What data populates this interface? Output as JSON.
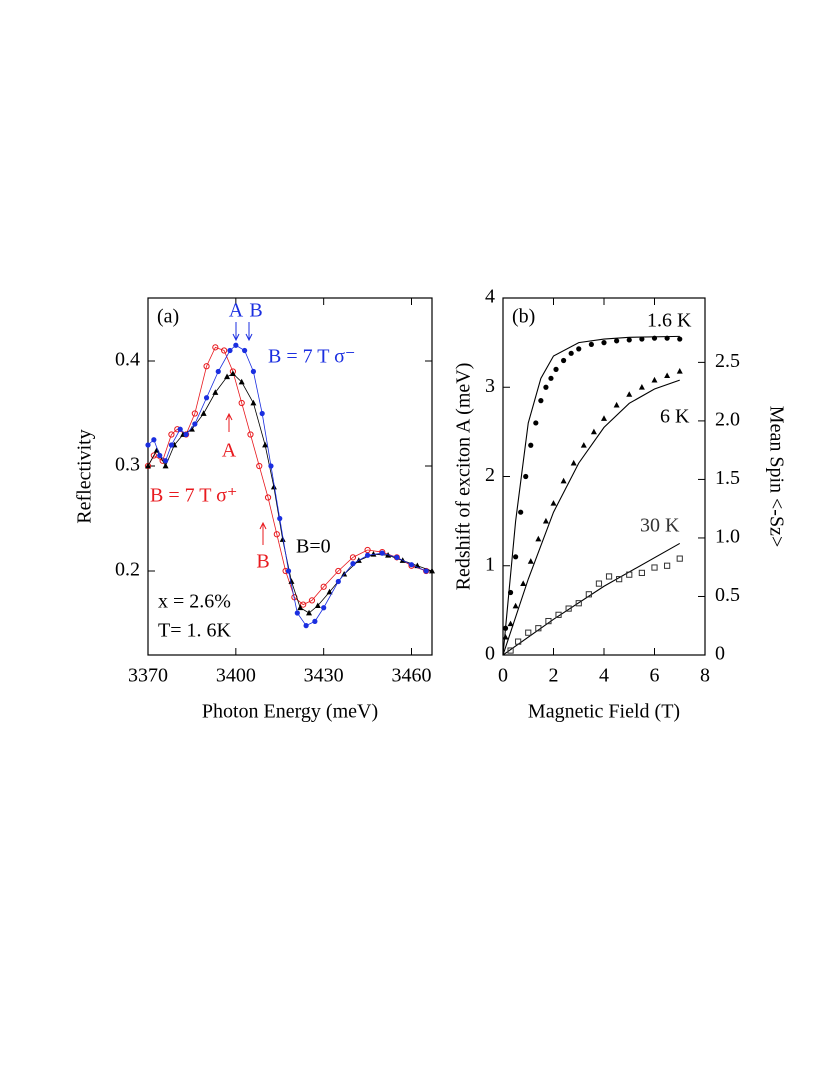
{
  "chart_data": [
    {
      "type": "line",
      "panel_label": "(a)",
      "xlabel": "Photon Energy (meV)",
      "ylabel": "Reflectivity",
      "xlim": [
        3370,
        3467
      ],
      "xticks": [
        3370,
        3400,
        3430,
        3460
      ],
      "ylim": [
        0.12,
        0.46
      ],
      "yticks": [
        0.2,
        0.3,
        0.4
      ],
      "series": [
        {
          "name": "B = 7 T σ⁺",
          "color": "#e8191e",
          "marker": "circle-open",
          "x": [
            3370,
            3372,
            3375,
            3378,
            3380,
            3383,
            3386,
            3390,
            3393,
            3396,
            3399,
            3402,
            3405,
            3408,
            3411,
            3414,
            3417,
            3420,
            3423,
            3426,
            3430,
            3435,
            3440,
            3445,
            3450,
            3455,
            3460,
            3465
          ],
          "values": [
            0.3,
            0.31,
            0.305,
            0.33,
            0.335,
            0.33,
            0.35,
            0.395,
            0.413,
            0.41,
            0.39,
            0.36,
            0.33,
            0.3,
            0.27,
            0.235,
            0.2,
            0.175,
            0.168,
            0.172,
            0.185,
            0.2,
            0.213,
            0.22,
            0.218,
            0.213,
            0.205,
            0.2
          ]
        },
        {
          "name": "B=0",
          "color": "#000000",
          "marker": "triangle",
          "x": [
            3370,
            3373,
            3376,
            3379,
            3382,
            3385,
            3389,
            3393,
            3397,
            3399,
            3402,
            3406,
            3410,
            3413,
            3416,
            3419,
            3422,
            3425,
            3428,
            3432,
            3437,
            3442,
            3447,
            3452,
            3457,
            3462,
            3467
          ],
          "values": [
            0.3,
            0.315,
            0.3,
            0.32,
            0.33,
            0.335,
            0.35,
            0.37,
            0.385,
            0.388,
            0.38,
            0.36,
            0.32,
            0.28,
            0.23,
            0.19,
            0.165,
            0.16,
            0.167,
            0.18,
            0.197,
            0.21,
            0.216,
            0.215,
            0.21,
            0.205,
            0.2
          ]
        },
        {
          "name": "B = 7 T σ⁻",
          "color": "#1a2ee0",
          "marker": "circle",
          "x": [
            3370,
            3372,
            3374,
            3376,
            3378,
            3381,
            3383,
            3386,
            3390,
            3394,
            3398,
            3400,
            3403,
            3406,
            3409,
            3412,
            3415,
            3418,
            3421,
            3424,
            3427,
            3430,
            3435,
            3440,
            3445,
            3450,
            3455,
            3460,
            3465
          ],
          "values": [
            0.32,
            0.325,
            0.31,
            0.305,
            0.32,
            0.335,
            0.33,
            0.34,
            0.365,
            0.39,
            0.41,
            0.415,
            0.41,
            0.39,
            0.35,
            0.3,
            0.25,
            0.2,
            0.16,
            0.148,
            0.152,
            0.165,
            0.19,
            0.207,
            0.215,
            0.217,
            0.213,
            0.206,
            0.2
          ]
        }
      ],
      "annotations": [
        {
          "text": "A",
          "color": "#1a2ee0"
        },
        {
          "text": "B",
          "color": "#1a2ee0"
        },
        {
          "text": "A",
          "color": "#e8191e"
        },
        {
          "text": "B",
          "color": "#e8191e"
        },
        {
          "text": "x = 2.6%",
          "color": "#000000"
        },
        {
          "text": "T= 1. 6K",
          "color": "#000000"
        }
      ]
    },
    {
      "type": "scatter",
      "panel_label": "(b)",
      "xlabel": "Magnetic Field (T)",
      "ylabel": "Redshift of exciton A (meV)",
      "y2label": "Mean Spin <-Sz>",
      "xlim": [
        0,
        8
      ],
      "xticks": [
        0,
        2,
        4,
        6,
        8
      ],
      "ylim": [
        0,
        4
      ],
      "yticks": [
        0,
        1,
        2,
        3,
        4
      ],
      "y2lim": [
        0,
        3.05
      ],
      "y2ticks": [
        0,
        0.5,
        {
          "value": 1,
          "label": "1.0"
        },
        1.5,
        {
          "value": 2,
          "label": "2.0"
        },
        2.5
      ],
      "series": [
        {
          "name": "1.6 K",
          "color": "#000000",
          "marker": "circle",
          "x": [
            0.1,
            0.3,
            0.5,
            0.7,
            0.9,
            1.1,
            1.3,
            1.5,
            1.7,
            1.9,
            2.1,
            2.4,
            2.7,
            3,
            3.5,
            4,
            4.5,
            5,
            5.5,
            6,
            6.5,
            7
          ],
          "values": [
            0.3,
            0.7,
            1.1,
            1.6,
            2,
            2.35,
            2.6,
            2.85,
            3,
            3.1,
            3.2,
            3.3,
            3.38,
            3.43,
            3.48,
            3.5,
            3.52,
            3.53,
            3.54,
            3.55,
            3.55,
            3.54
          ]
        },
        {
          "name": "6 K",
          "color": "#000000",
          "marker": "triangle",
          "x": [
            0.1,
            0.3,
            0.5,
            0.8,
            1.1,
            1.4,
            1.7,
            2,
            2.4,
            2.8,
            3.2,
            3.6,
            4,
            4.5,
            5,
            5.5,
            6,
            6.5,
            7
          ],
          "values": [
            0.2,
            0.35,
            0.55,
            0.8,
            1.05,
            1.3,
            1.5,
            1.7,
            1.95,
            2.15,
            2.35,
            2.5,
            2.65,
            2.8,
            2.92,
            3,
            3.08,
            3.13,
            3.18
          ]
        },
        {
          "name": "30 K",
          "color": "#333333",
          "marker": "square-open",
          "x": [
            0.3,
            0.6,
            1,
            1.4,
            1.8,
            2.2,
            2.6,
            3,
            3.4,
            3.8,
            4.2,
            4.6,
            5,
            5.5,
            6,
            6.5,
            7
          ],
          "values": [
            0.05,
            0.15,
            0.25,
            0.3,
            0.38,
            0.45,
            0.52,
            0.58,
            0.68,
            0.8,
            0.88,
            0.85,
            0.9,
            0.92,
            0.98,
            1,
            1.08
          ]
        }
      ],
      "fits": [
        {
          "color": "#000000",
          "x": [
            0,
            0.5,
            1,
            1.5,
            2,
            3,
            4,
            5,
            7
          ],
          "values": [
            0,
            1.5,
            2.6,
            3.1,
            3.35,
            3.5,
            3.54,
            3.56,
            3.57
          ]
        },
        {
          "color": "#000000",
          "x": [
            0,
            1,
            2,
            3,
            4,
            5,
            6,
            7
          ],
          "values": [
            0,
            0.85,
            1.6,
            2.15,
            2.55,
            2.82,
            2.98,
            3.08
          ]
        },
        {
          "color": "#000000",
          "x": [
            0,
            2,
            4,
            7
          ],
          "values": [
            0,
            0.4,
            0.77,
            1.25
          ]
        }
      ]
    }
  ]
}
